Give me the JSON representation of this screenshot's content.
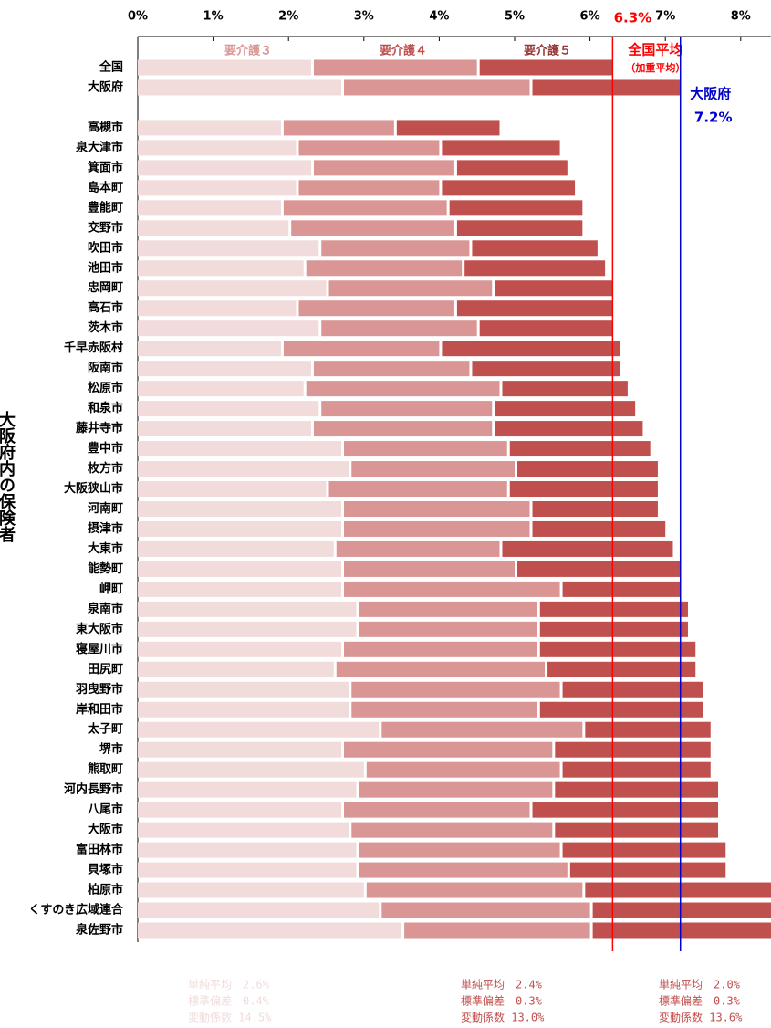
{
  "chart_data": {
    "type": "stacked-barh",
    "y_label": "大阪府内の保険者",
    "categories": [
      "全国",
      "大阪府",
      null,
      "高槻市",
      "泉大津市",
      "箕面市",
      "島本町",
      "豊能町",
      "交野市",
      "吹田市",
      "池田市",
      "忠岡町",
      "高石市",
      "茨木市",
      "千早赤阪村",
      "阪南市",
      "松原市",
      "和泉市",
      "藤井寺市",
      "豊中市",
      "枚方市",
      "大阪狭山市",
      "河南町",
      "摂津市",
      "大東市",
      "能勢町",
      "岬町",
      "泉南市",
      "東大阪市",
      "寝屋川市",
      "田尻町",
      "羽曳野市",
      "岸和田市",
      "太子町",
      "堺市",
      "熊取町",
      "河内長野市",
      "八尾市",
      "大阪市",
      "富田林市",
      "貝塚市",
      "柏原市",
      "くすのき広域連合",
      "泉佐野市"
    ],
    "series": [
      {
        "name": "要介護３",
        "color": "#f1dcdb",
        "label_color": "#d99694",
        "values": [
          2.3,
          2.7,
          null,
          1.9,
          2.1,
          2.3,
          2.1,
          1.9,
          2.0,
          2.4,
          2.2,
          2.5,
          2.1,
          2.4,
          1.9,
          2.3,
          2.2,
          2.4,
          2.3,
          2.7,
          2.8,
          2.5,
          2.7,
          2.7,
          2.6,
          2.7,
          2.7,
          2.9,
          2.9,
          2.7,
          2.6,
          2.8,
          2.8,
          3.2,
          2.7,
          3.0,
          2.9,
          2.7,
          2.8,
          2.9,
          2.9,
          3.0,
          3.2,
          3.5
        ],
        "stats": [
          "単純平均　2.6%",
          "標準偏差　0.4%",
          "変動係数 14.5%"
        ]
      },
      {
        "name": "要介護４",
        "color": "#d99694",
        "label_color": "#c0504d",
        "values": [
          2.2,
          2.5,
          null,
          1.5,
          1.9,
          1.9,
          1.9,
          2.2,
          2.2,
          2.0,
          2.1,
          2.2,
          2.1,
          2.1,
          2.1,
          2.1,
          2.6,
          2.3,
          2.4,
          2.2,
          2.2,
          2.4,
          2.5,
          2.5,
          2.2,
          2.3,
          2.9,
          2.4,
          2.4,
          2.6,
          2.8,
          2.8,
          2.5,
          2.7,
          2.8,
          2.6,
          2.6,
          2.5,
          2.7,
          2.7,
          2.8,
          2.9,
          2.8,
          2.5
        ],
        "stats": [
          "単純平均　2.4%",
          "標準偏差　0.3%",
          "変動係数 13.0%"
        ]
      },
      {
        "name": "要介護５",
        "color": "#c0504d",
        "label_color": "#953735",
        "values": [
          1.8,
          2.0,
          null,
          1.4,
          1.6,
          1.5,
          1.8,
          1.8,
          1.7,
          1.7,
          1.9,
          1.6,
          2.1,
          1.8,
          2.4,
          2.0,
          1.7,
          1.9,
          2.0,
          1.9,
          1.9,
          2.0,
          1.7,
          1.8,
          2.3,
          2.2,
          1.6,
          2.0,
          2.0,
          2.1,
          2.0,
          1.9,
          2.2,
          1.7,
          2.1,
          2.0,
          2.2,
          2.5,
          2.2,
          2.2,
          2.1,
          2.6,
          2.6,
          2.8
        ],
        "stats": [
          "単純平均　2.0%",
          "標準偏差　0.3%",
          "変動係数 13.6%"
        ]
      }
    ],
    "xlim": [
      0,
      8.4
    ],
    "xticks": [
      {
        "value": 0,
        "label": "0%"
      },
      {
        "value": 1,
        "label": "1%"
      },
      {
        "value": 2,
        "label": "2%"
      },
      {
        "value": 3,
        "label": "3%"
      },
      {
        "value": 4,
        "label": "4%"
      },
      {
        "value": 5,
        "label": "5%"
      },
      {
        "value": 6,
        "label": "6%"
      },
      {
        "value": 7,
        "label": "7%"
      },
      {
        "value": 8,
        "label": "8%"
      }
    ],
    "reference_lines": [
      {
        "name": "全国平均",
        "note": "（加重平均）",
        "value": 6.3,
        "label": "6.3%",
        "color": "#ff0000"
      },
      {
        "name": "大阪府",
        "value": 7.2,
        "label": "7.2%",
        "color": "#0000cc"
      }
    ]
  }
}
